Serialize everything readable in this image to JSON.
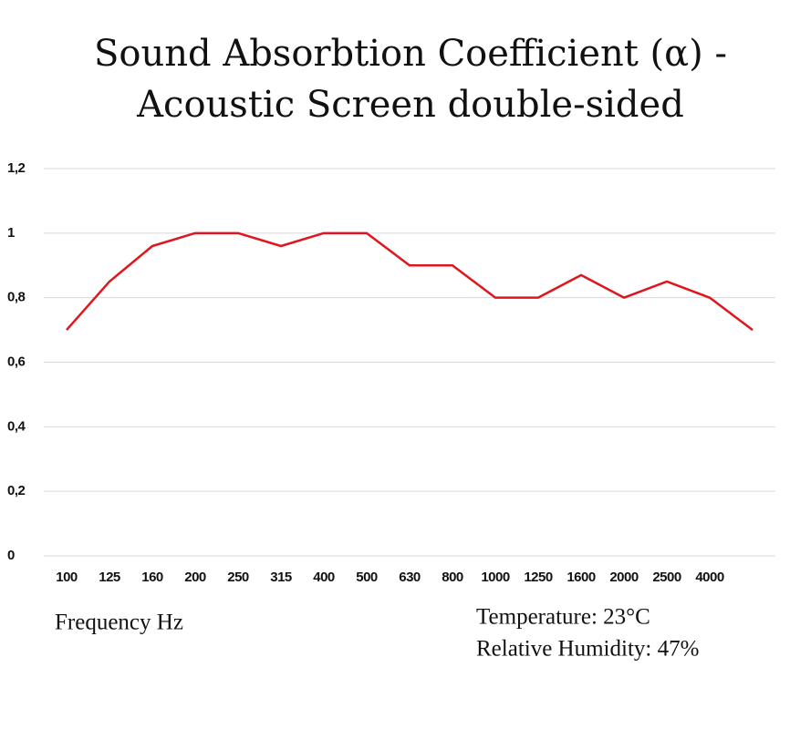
{
  "chart_data": {
    "type": "line",
    "title": [
      "Sound Absorbtion Coefficient (α) -",
      "Acoustic Screen double-sided"
    ],
    "categories": [
      "100",
      "125",
      "160",
      "200",
      "250",
      "315",
      "400",
      "500",
      "630",
      "800",
      "1000",
      "1250",
      "1600",
      "2000",
      "2500",
      "4000",
      null
    ],
    "series": [
      {
        "name": "Sound Absorption Coefficient",
        "color": "#e0161e",
        "values": [
          0.7,
          0.85,
          0.96,
          1,
          1,
          0.96,
          1,
          1,
          0.9,
          0.9,
          0.8,
          0.8,
          0.87,
          0.8,
          0.85,
          0.8,
          0.7
        ]
      }
    ],
    "ylim": [
      0,
      1.2
    ],
    "yticks": [
      0,
      {
        "value": 0.2,
        "label": "0,2"
      },
      {
        "value": 0.4,
        "label": "0,4"
      },
      {
        "value": 0.6,
        "label": "0,6"
      },
      {
        "value": 0.8,
        "label": "0,8"
      },
      1,
      {
        "value": 1.2,
        "label": "1,2"
      }
    ],
    "grid": true,
    "annotations": [
      "Frequency Hz",
      "Temperature: 23°C",
      "Relative Humidity: 47%"
    ]
  }
}
